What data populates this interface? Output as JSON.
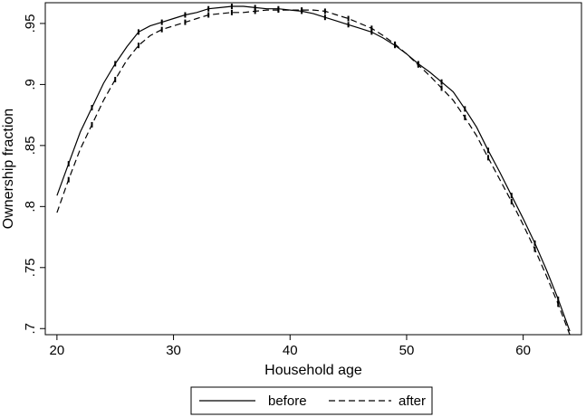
{
  "chart_data": {
    "type": "line",
    "title": "",
    "xlabel": "Household age",
    "ylabel": "Ownership fraction",
    "xlim": [
      20,
      64
    ],
    "ylim": [
      0.7,
      0.965
    ],
    "xticks": [
      20,
      30,
      40,
      50,
      60
    ],
    "xtick_labels": [
      "20",
      "30",
      "40",
      "50",
      "60"
    ],
    "yticks": [
      0.7,
      0.75,
      0.8,
      0.85,
      0.9,
      0.95
    ],
    "ytick_labels": [
      ".7",
      ".75",
      ".8",
      ".85",
      ".9",
      ".95"
    ],
    "grid": false,
    "legend_position": "bottom",
    "series": [
      {
        "name": "before",
        "style": "solid",
        "color": "#000000",
        "x": [
          20,
          21,
          22,
          23,
          24,
          25,
          26,
          27,
          28,
          29,
          30,
          31,
          32,
          33,
          34,
          35,
          36,
          37,
          38,
          39,
          40,
          41,
          42,
          43,
          44,
          45,
          46,
          47,
          48,
          49,
          50,
          51,
          52,
          53,
          54,
          55,
          56,
          57,
          58,
          59,
          60,
          61,
          62,
          63,
          64
        ],
        "values": [
          0.809,
          0.835,
          0.861,
          0.881,
          0.901,
          0.917,
          0.931,
          0.943,
          0.948,
          0.951,
          0.954,
          0.957,
          0.959,
          0.962,
          0.963,
          0.964,
          0.964,
          0.963,
          0.962,
          0.962,
          0.961,
          0.96,
          0.958,
          0.955,
          0.952,
          0.949,
          0.946,
          0.943,
          0.938,
          0.932,
          0.925,
          0.917,
          0.91,
          0.902,
          0.894,
          0.88,
          0.865,
          0.846,
          0.828,
          0.809,
          0.79,
          0.77,
          0.748,
          0.724,
          0.698
        ]
      },
      {
        "name": "after",
        "style": "dashed",
        "color": "#000000",
        "x": [
          20,
          21,
          22,
          23,
          24,
          25,
          26,
          27,
          28,
          29,
          30,
          31,
          32,
          33,
          34,
          35,
          36,
          37,
          38,
          39,
          40,
          41,
          42,
          43,
          44,
          45,
          46,
          47,
          48,
          49,
          50,
          51,
          52,
          53,
          54,
          55,
          56,
          57,
          58,
          59,
          60,
          61,
          62,
          63,
          64
        ],
        "values": [
          0.795,
          0.822,
          0.847,
          0.867,
          0.887,
          0.904,
          0.92,
          0.932,
          0.94,
          0.945,
          0.948,
          0.951,
          0.954,
          0.957,
          0.958,
          0.959,
          0.959,
          0.96,
          0.961,
          0.961,
          0.961,
          0.961,
          0.961,
          0.96,
          0.957,
          0.954,
          0.95,
          0.946,
          0.94,
          0.933,
          0.925,
          0.916,
          0.907,
          0.897,
          0.887,
          0.873,
          0.858,
          0.84,
          0.822,
          0.804,
          0.785,
          0.765,
          0.743,
          0.72,
          0.695
        ]
      }
    ]
  }
}
